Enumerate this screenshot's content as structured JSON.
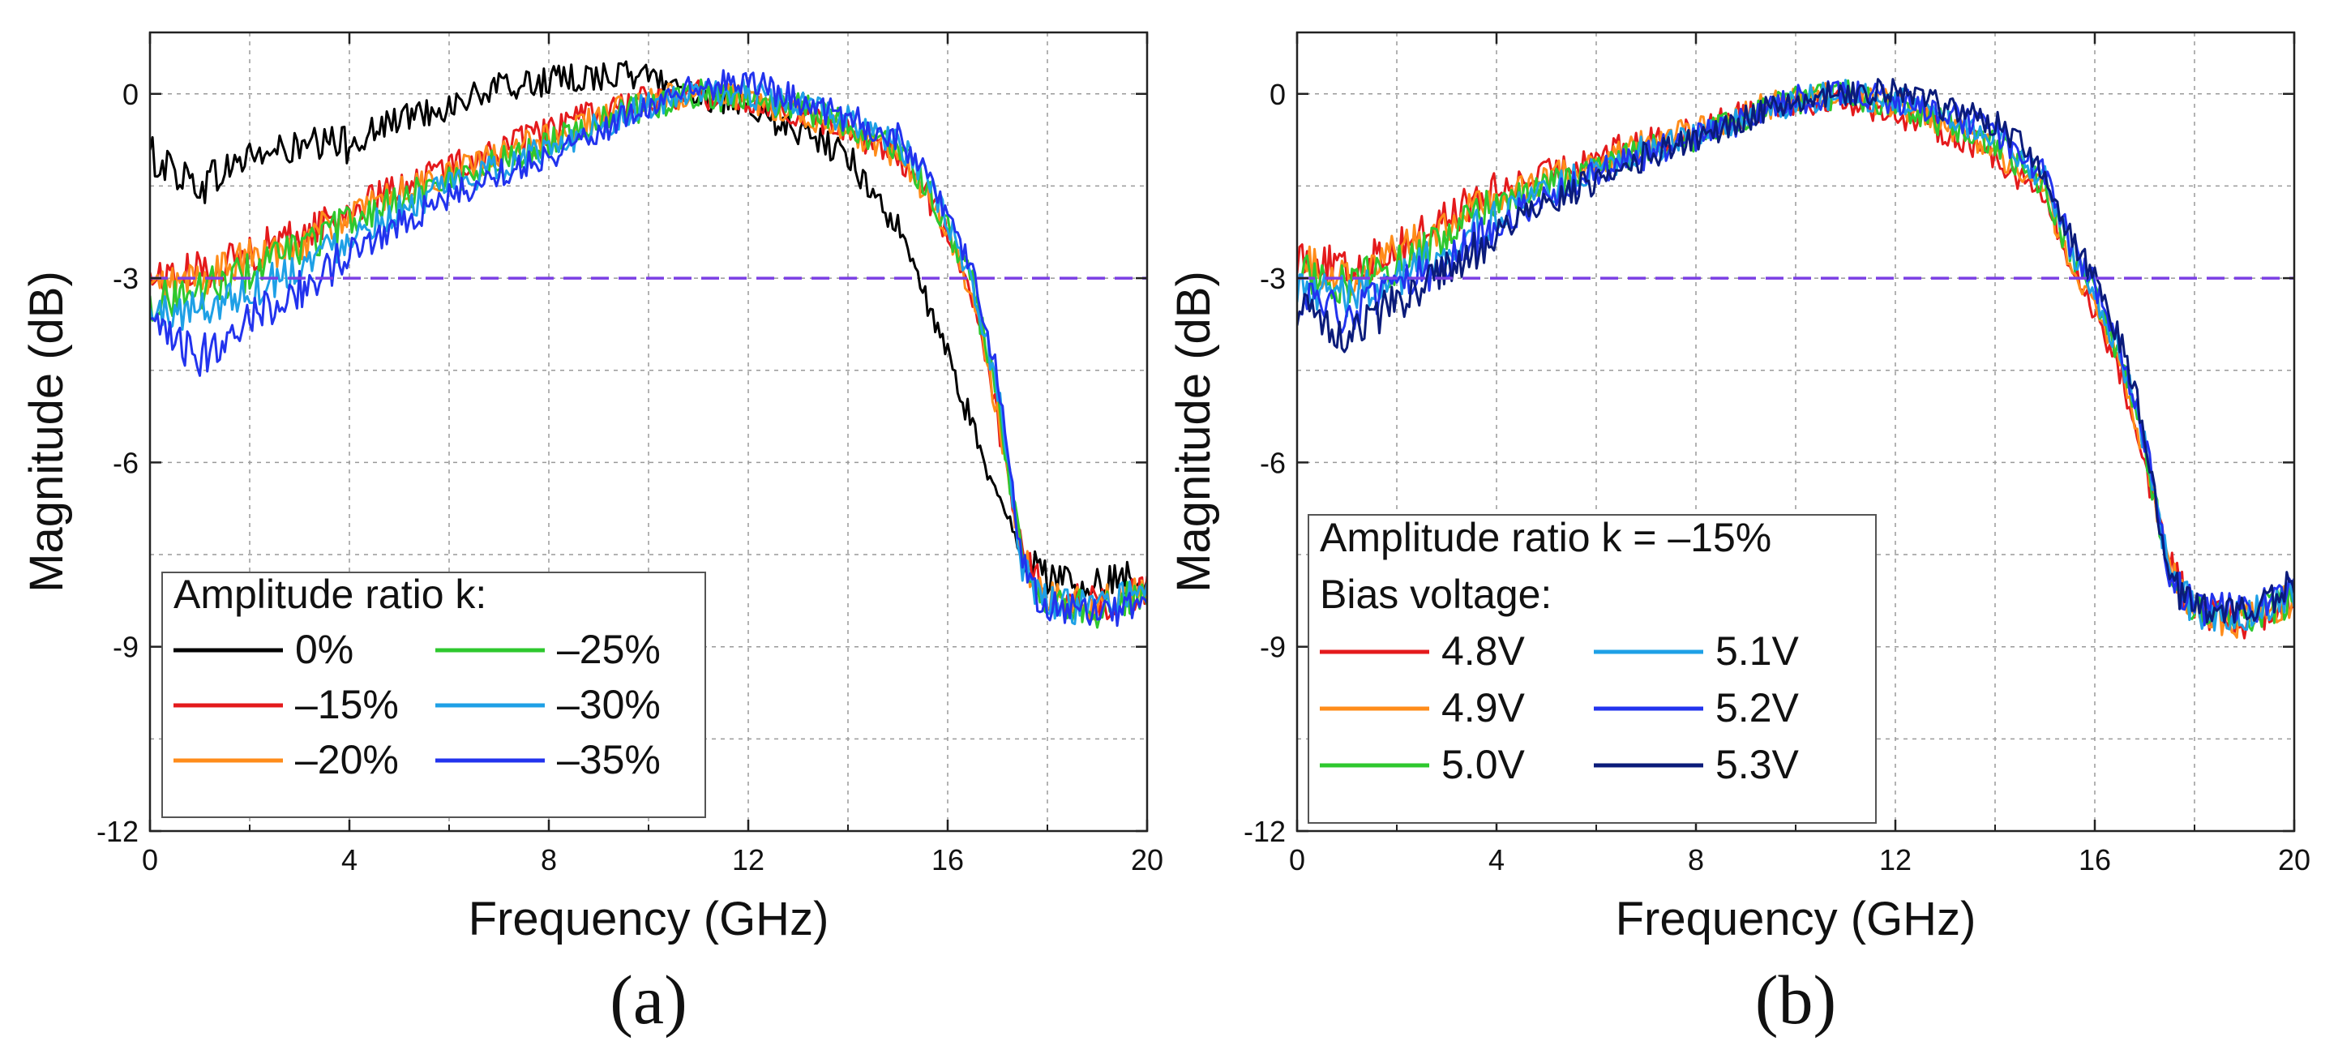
{
  "chart_data": [
    {
      "type": "line",
      "panel": "left",
      "caption": "(a)",
      "xlabel": "Frequency (GHz)",
      "ylabel": "Magnitude (dB)",
      "xlim": [
        0,
        20
      ],
      "ylim": [
        -12,
        1
      ],
      "xticks": [
        "0",
        "4",
        "8",
        "12",
        "16",
        "20"
      ],
      "yticks": [
        "-12",
        "-9",
        "-6",
        "-3",
        "0"
      ],
      "grid": true,
      "reference_line": {
        "y": -3,
        "color": "#7b3fe4",
        "style": "dashed"
      },
      "legend": {
        "position": "bottom-left",
        "title_lines": [
          "Amplitude ratio k:"
        ],
        "columns": 2
      },
      "series": [
        {
          "name": "0%",
          "color": "#000000",
          "x": [
            0,
            1,
            2,
            3,
            4,
            5,
            6,
            7,
            8,
            9,
            10,
            11,
            12,
            13,
            14,
            14.5,
            15,
            15.5,
            16,
            16.5,
            17,
            17.5,
            18,
            19,
            20
          ],
          "y": [
            -1.0,
            -1.5,
            -1.0,
            -0.9,
            -0.8,
            -0.4,
            -0.2,
            0.1,
            0.2,
            0.3,
            0.3,
            0.0,
            -0.3,
            -0.6,
            -1.0,
            -1.6,
            -2.2,
            -3.2,
            -4.3,
            -5.4,
            -6.6,
            -7.5,
            -7.9,
            -8.0,
            -7.8
          ]
        },
        {
          "name": "–15%",
          "color": "#e41a1c",
          "x": [
            0,
            1,
            2,
            3,
            4,
            5,
            6,
            7,
            8,
            9,
            10,
            11,
            12,
            13,
            14,
            15,
            15.5,
            16,
            16.5,
            17,
            17.5,
            18,
            19,
            20
          ],
          "y": [
            -3.0,
            -2.9,
            -2.6,
            -2.3,
            -1.9,
            -1.5,
            -1.2,
            -0.9,
            -0.6,
            -0.3,
            -0.1,
            0.0,
            -0.1,
            -0.3,
            -0.6,
            -1.0,
            -1.5,
            -2.3,
            -3.3,
            -5.3,
            -7.5,
            -8.2,
            -8.3,
            -8.1
          ]
        },
        {
          "name": "–20%",
          "color": "#ff8c1a",
          "x": [
            0,
            1,
            2,
            3,
            4,
            5,
            6,
            7,
            8,
            9,
            10,
            11,
            12,
            13,
            14,
            15,
            15.5,
            16,
            16.5,
            17,
            17.5,
            18,
            19,
            20
          ],
          "y": [
            -3.2,
            -3.0,
            -2.7,
            -2.4,
            -2.0,
            -1.6,
            -1.3,
            -1.0,
            -0.7,
            -0.4,
            -0.1,
            0.0,
            -0.1,
            -0.3,
            -0.6,
            -1.0,
            -1.5,
            -2.3,
            -3.3,
            -5.2,
            -7.6,
            -8.2,
            -8.3,
            -8.1
          ]
        },
        {
          "name": "–25%",
          "color": "#2ec82e",
          "x": [
            0,
            1,
            2,
            3,
            4,
            5,
            6,
            7,
            8,
            9,
            10,
            11,
            12,
            13,
            14,
            15,
            15.5,
            16,
            16.5,
            17,
            17.5,
            18,
            19,
            20
          ],
          "y": [
            -3.4,
            -3.2,
            -2.9,
            -2.5,
            -2.1,
            -1.7,
            -1.4,
            -1.1,
            -0.8,
            -0.4,
            -0.2,
            0.0,
            -0.1,
            -0.2,
            -0.5,
            -0.9,
            -1.4,
            -2.2,
            -3.1,
            -5.0,
            -7.6,
            -8.3,
            -8.4,
            -8.1
          ]
        },
        {
          "name": "–30%",
          "color": "#1ea0e6",
          "x": [
            0,
            1,
            2,
            3,
            4,
            5,
            6,
            7,
            8,
            9,
            10,
            11,
            12,
            13,
            14,
            15,
            15.5,
            16,
            16.5,
            17,
            17.5,
            18,
            19,
            20
          ],
          "y": [
            -3.6,
            -3.5,
            -3.2,
            -2.8,
            -2.3,
            -1.9,
            -1.5,
            -1.2,
            -0.9,
            -0.5,
            -0.2,
            0.0,
            0.0,
            -0.2,
            -0.4,
            -0.8,
            -1.3,
            -2.1,
            -3.0,
            -4.8,
            -7.7,
            -8.3,
            -8.4,
            -8.1
          ]
        },
        {
          "name": "–35%",
          "color": "#2233ee",
          "x": [
            0,
            1,
            2,
            3,
            4,
            5,
            6,
            7,
            8,
            9,
            10,
            11,
            12,
            13,
            14,
            15,
            15.5,
            16,
            16.5,
            17,
            17.5,
            18,
            19,
            20
          ],
          "y": [
            -3.8,
            -4.3,
            -3.6,
            -3.2,
            -2.6,
            -2.1,
            -1.7,
            -1.3,
            -1.0,
            -0.6,
            -0.2,
            0.1,
            0.2,
            -0.1,
            -0.4,
            -0.7,
            -1.2,
            -2.0,
            -2.9,
            -4.6,
            -7.7,
            -8.4,
            -8.5,
            -8.2
          ]
        }
      ]
    },
    {
      "type": "line",
      "panel": "right",
      "caption": "(b)",
      "xlabel": "Frequency (GHz)",
      "ylabel": "Magnitude (dB)",
      "xlim": [
        0,
        20
      ],
      "ylim": [
        -12,
        1
      ],
      "xticks": [
        "0",
        "4",
        "8",
        "12",
        "16",
        "20"
      ],
      "yticks": [
        "-12",
        "-9",
        "-6",
        "-3",
        "0"
      ],
      "grid": true,
      "reference_line": {
        "y": -3,
        "color": "#7b3fe4",
        "style": "dashed"
      },
      "legend": {
        "position": "bottom-left",
        "title_lines": [
          "Amplitude ratio k = –15%",
          "Bias voltage:"
        ],
        "columns": 2
      },
      "series": [
        {
          "name": "4.8V",
          "color": "#e41a1c",
          "x": [
            0,
            1,
            2,
            3,
            4,
            5,
            6,
            7,
            8,
            9,
            10,
            11,
            12,
            13,
            14,
            15,
            15.5,
            16,
            16.5,
            17,
            17.5,
            18,
            19,
            20
          ],
          "y": [
            -2.6,
            -2.9,
            -2.5,
            -2.0,
            -1.6,
            -1.3,
            -1.0,
            -0.8,
            -0.6,
            -0.3,
            -0.1,
            -0.1,
            -0.3,
            -0.6,
            -1.0,
            -1.7,
            -2.8,
            -3.5,
            -4.5,
            -6.0,
            -7.7,
            -8.4,
            -8.6,
            -8.2
          ]
        },
        {
          "name": "4.9V",
          "color": "#ff8c1a",
          "x": [
            0,
            1,
            2,
            3,
            4,
            5,
            6,
            7,
            8,
            9,
            10,
            11,
            12,
            13,
            14,
            15,
            15.5,
            16,
            16.5,
            17,
            17.5,
            18,
            19,
            20
          ],
          "y": [
            -2.7,
            -3.0,
            -2.6,
            -2.1,
            -1.7,
            -1.4,
            -1.1,
            -0.8,
            -0.6,
            -0.3,
            -0.1,
            0.0,
            -0.2,
            -0.5,
            -0.9,
            -1.6,
            -2.7,
            -3.4,
            -4.4,
            -5.9,
            -7.7,
            -8.4,
            -8.6,
            -8.2
          ]
        },
        {
          "name": "5.0V",
          "color": "#2ec82e",
          "x": [
            0,
            1,
            2,
            3,
            4,
            5,
            6,
            7,
            8,
            9,
            10,
            11,
            12,
            13,
            14,
            15,
            15.5,
            16,
            16.5,
            17,
            17.5,
            18,
            19,
            20
          ],
          "y": [
            -2.9,
            -3.1,
            -2.8,
            -2.3,
            -1.8,
            -1.5,
            -1.2,
            -0.9,
            -0.7,
            -0.4,
            -0.1,
            0.0,
            -0.2,
            -0.5,
            -0.8,
            -1.5,
            -2.6,
            -3.3,
            -4.3,
            -5.8,
            -7.8,
            -8.4,
            -8.5,
            -8.2
          ]
        },
        {
          "name": "5.1V",
          "color": "#1ea0e6",
          "x": [
            0,
            1,
            2,
            3,
            4,
            5,
            6,
            7,
            8,
            9,
            10,
            11,
            12,
            13,
            14,
            15,
            15.5,
            16,
            16.5,
            17,
            17.5,
            18,
            19,
            20
          ],
          "y": [
            -3.1,
            -3.3,
            -3.0,
            -2.5,
            -2.0,
            -1.6,
            -1.2,
            -0.9,
            -0.7,
            -0.4,
            -0.1,
            0.0,
            -0.1,
            -0.4,
            -0.7,
            -1.4,
            -2.5,
            -3.2,
            -4.2,
            -5.7,
            -7.8,
            -8.4,
            -8.5,
            -8.1
          ]
        },
        {
          "name": "5.2V",
          "color": "#2233ee",
          "x": [
            0,
            1,
            2,
            3,
            4,
            5,
            6,
            7,
            8,
            9,
            10,
            11,
            12,
            13,
            14,
            15,
            15.5,
            16,
            16.5,
            17,
            17.5,
            18,
            19,
            20
          ],
          "y": [
            -3.3,
            -3.6,
            -3.2,
            -2.7,
            -2.1,
            -1.7,
            -1.3,
            -1.0,
            -0.7,
            -0.4,
            -0.1,
            0.0,
            -0.1,
            -0.3,
            -0.6,
            -1.3,
            -2.4,
            -3.1,
            -4.1,
            -5.6,
            -7.8,
            -8.4,
            -8.4,
            -8.0
          ]
        },
        {
          "name": "5.3V",
          "color": "#0b1b7a",
          "x": [
            0,
            1,
            2,
            3,
            4,
            5,
            6,
            7,
            8,
            9,
            10,
            11,
            12,
            13,
            14,
            15,
            15.5,
            16,
            16.5,
            17,
            17.5,
            18,
            19,
            20
          ],
          "y": [
            -3.5,
            -3.9,
            -3.4,
            -2.9,
            -2.3,
            -1.8,
            -1.4,
            -1.0,
            -0.7,
            -0.4,
            -0.1,
            0.0,
            0.0,
            -0.2,
            -0.5,
            -1.2,
            -2.3,
            -3.0,
            -4.0,
            -5.5,
            -7.9,
            -8.4,
            -8.4,
            -8.0
          ]
        }
      ]
    }
  ]
}
